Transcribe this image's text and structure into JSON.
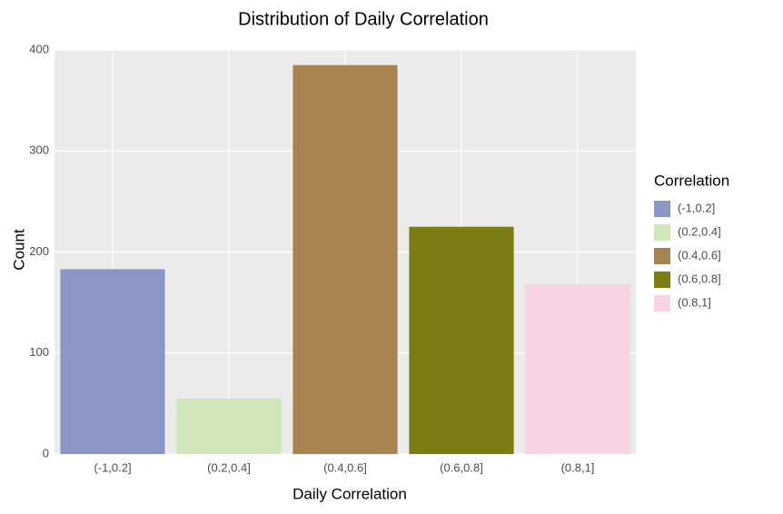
{
  "chart_data": {
    "type": "bar",
    "title": "Distribution of Daily Correlation",
    "x_label": "Daily Correlation",
    "y_label": "Count",
    "legend_title": "Correlation",
    "categories": [
      "(-1,0.2]",
      "(0.2,0.4]",
      "(0.4,0.6]",
      "(0.6,0.8]",
      "(0.8,1]"
    ],
    "values": [
      183,
      55,
      385,
      225,
      168
    ],
    "colors": [
      "#8c96c6",
      "#cfe6bb",
      "#a6834f",
      "#7b7d12",
      "#f7d3e4"
    ],
    "ylim": [
      0,
      400
    ],
    "yticks": [
      0,
      100,
      200,
      300,
      400
    ],
    "grid": true,
    "legend": "right"
  }
}
